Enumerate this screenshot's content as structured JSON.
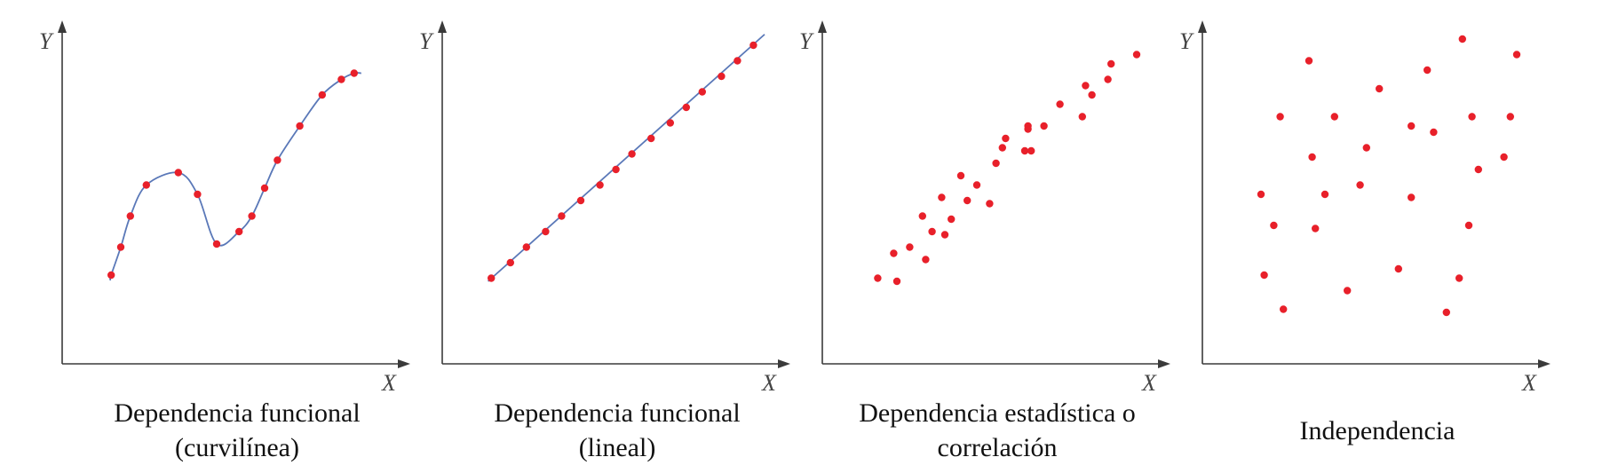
{
  "chart_data": [
    {
      "type": "scatter",
      "title": "Dependencia funcional (curvilínea)",
      "title_lines": [
        "Dependencia funcional",
        "(curvilínea)"
      ],
      "xlabel": "X",
      "ylabel": "Y",
      "xlim": [
        0,
        10
      ],
      "ylim": [
        0,
        10
      ],
      "grid": false,
      "fit_curve": true,
      "points": [
        [
          1.2,
          2.0
        ],
        [
          1.5,
          2.9
        ],
        [
          1.8,
          3.9
        ],
        [
          2.3,
          4.9
        ],
        [
          3.3,
          5.3
        ],
        [
          3.9,
          4.6
        ],
        [
          4.5,
          3.0
        ],
        [
          5.2,
          3.4
        ],
        [
          5.6,
          3.9
        ],
        [
          6.0,
          4.8
        ],
        [
          6.4,
          5.7
        ],
        [
          7.1,
          6.8
        ],
        [
          7.8,
          7.8
        ],
        [
          8.4,
          8.3
        ],
        [
          8.8,
          8.5
        ]
      ]
    },
    {
      "type": "scatter",
      "title": "Dependencia funcional (lineal)",
      "title_lines": [
        "Dependencia funcional",
        "(lineal)"
      ],
      "xlabel": "X",
      "ylabel": "Y",
      "xlim": [
        0,
        10
      ],
      "ylim": [
        0,
        10
      ],
      "grid": false,
      "fit_line": true,
      "points": [
        [
          1.2,
          1.9
        ],
        [
          1.8,
          2.4
        ],
        [
          2.3,
          2.9
        ],
        [
          2.9,
          3.4
        ],
        [
          3.4,
          3.9
        ],
        [
          4.0,
          4.4
        ],
        [
          4.6,
          4.9
        ],
        [
          5.1,
          5.4
        ],
        [
          5.6,
          5.9
        ],
        [
          6.2,
          6.4
        ],
        [
          6.8,
          6.9
        ],
        [
          7.3,
          7.4
        ],
        [
          7.8,
          7.9
        ],
        [
          8.4,
          8.4
        ],
        [
          8.9,
          8.9
        ],
        [
          9.4,
          9.4
        ]
      ]
    },
    {
      "type": "scatter",
      "title": "Dependencia estadística o correlación",
      "title_lines": [
        "Dependencia estadística o",
        "correlación"
      ],
      "xlabel": "X",
      "ylabel": "Y",
      "xlim": [
        0,
        10
      ],
      "ylim": [
        0,
        10
      ],
      "grid": false,
      "points": [
        [
          1.4,
          1.9
        ],
        [
          1.9,
          2.7
        ],
        [
          2.0,
          1.8
        ],
        [
          2.4,
          2.9
        ],
        [
          2.8,
          3.9
        ],
        [
          2.9,
          2.5
        ],
        [
          3.1,
          3.4
        ],
        [
          3.4,
          4.5
        ],
        [
          3.5,
          3.3
        ],
        [
          3.7,
          3.8
        ],
        [
          4.0,
          5.2
        ],
        [
          4.2,
          4.4
        ],
        [
          4.5,
          4.9
        ],
        [
          4.9,
          4.3
        ],
        [
          5.1,
          5.6
        ],
        [
          5.3,
          6.1
        ],
        [
          5.4,
          6.4
        ],
        [
          6.0,
          6.0
        ],
        [
          6.1,
          6.8
        ],
        [
          6.1,
          6.7
        ],
        [
          6.2,
          6.0
        ],
        [
          6.6,
          6.8
        ],
        [
          7.1,
          7.5
        ],
        [
          7.8,
          7.1
        ],
        [
          7.9,
          8.1
        ],
        [
          8.1,
          7.8
        ],
        [
          8.6,
          8.3
        ],
        [
          8.7,
          8.8
        ],
        [
          9.5,
          9.1
        ]
      ]
    },
    {
      "type": "scatter",
      "title": "Independencia",
      "title_lines": [
        "Independencia"
      ],
      "xlabel": "X",
      "ylabel": "Y",
      "xlim": [
        0,
        10
      ],
      "ylim": [
        0,
        10
      ],
      "grid": false,
      "points": [
        [
          1.5,
          4.6
        ],
        [
          1.6,
          2.0
        ],
        [
          1.9,
          3.6
        ],
        [
          2.2,
          0.9
        ],
        [
          2.1,
          7.1
        ],
        [
          3.0,
          8.9
        ],
        [
          3.1,
          5.8
        ],
        [
          3.2,
          3.5
        ],
        [
          3.5,
          4.6
        ],
        [
          3.8,
          7.1
        ],
        [
          4.2,
          1.5
        ],
        [
          4.6,
          4.9
        ],
        [
          4.8,
          6.1
        ],
        [
          5.2,
          8.0
        ],
        [
          5.8,
          2.2
        ],
        [
          6.2,
          4.5
        ],
        [
          6.2,
          6.8
        ],
        [
          6.7,
          8.6
        ],
        [
          6.9,
          6.6
        ],
        [
          7.3,
          0.8
        ],
        [
          7.7,
          1.9
        ],
        [
          7.8,
          9.6
        ],
        [
          8.0,
          3.6
        ],
        [
          8.1,
          7.1
        ],
        [
          8.3,
          5.4
        ],
        [
          9.1,
          5.8
        ],
        [
          9.3,
          7.1
        ],
        [
          9.5,
          9.1
        ]
      ]
    }
  ],
  "colors": {
    "axis": "#3a3a3a",
    "point": "#e8202a",
    "line": "#5a78b8"
  }
}
